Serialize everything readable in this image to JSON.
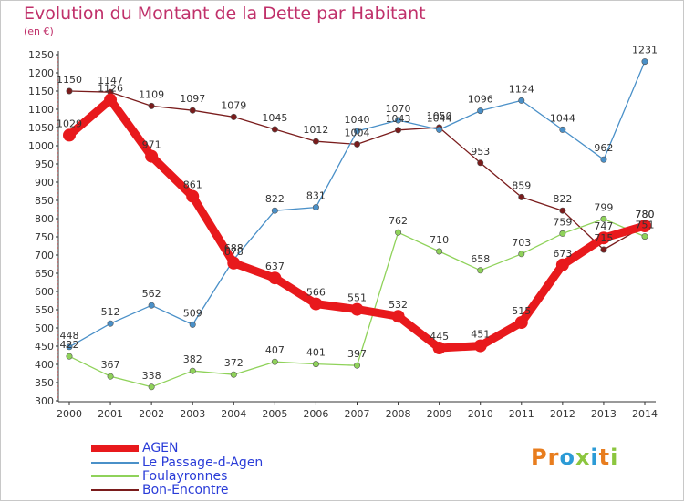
{
  "title": "Evolution du Montant de la Dette par Habitant",
  "unit": "(en €)",
  "logo": {
    "p": "Pr",
    "o": "o",
    "x": "x",
    "i": "i",
    "t": "t",
    "i2": "i"
  },
  "chart_data": {
    "type": "line",
    "title": "Evolution du Montant de la Dette par Habitant",
    "subtitle": "(en €)",
    "x": [
      "2000",
      "2001",
      "2002",
      "2003",
      "2004",
      "2005",
      "2006",
      "2007",
      "2008",
      "2009",
      "2010",
      "2011",
      "2012",
      "2013",
      "2014"
    ],
    "ylim": [
      300,
      1250
    ],
    "yticks": [
      300,
      350,
      400,
      450,
      500,
      550,
      600,
      650,
      700,
      750,
      800,
      850,
      900,
      950,
      1000,
      1050,
      1100,
      1150,
      1200,
      1250
    ],
    "grid": false,
    "legend_position": "bottom-left",
    "series": [
      {
        "name": "AGEN",
        "color": "#e8191c",
        "values": [
          1029,
          1126,
          971,
          861,
          678,
          637,
          566,
          551,
          532,
          445,
          451,
          515,
          673,
          747,
          780
        ],
        "labels": [
          "1029",
          "1126",
          "971",
          "861",
          "678",
          "637",
          "566",
          "551",
          "532",
          "445",
          "451",
          "515",
          "673",
          "747",
          "780"
        ]
      },
      {
        "name": "Le Passage-d-Agen",
        "color": "#4a90c8",
        "values": [
          448,
          512,
          562,
          509,
          688,
          822,
          831,
          1040,
          1070,
          1044,
          1096,
          1124,
          1044,
          962,
          1231
        ],
        "labels": [
          "448",
          "512",
          "562",
          "509",
          "688",
          "822",
          "831",
          "1040",
          "1070",
          "1044",
          "1096",
          "1124",
          "1044",
          "962",
          "1231"
        ]
      },
      {
        "name": "Foulayronnes",
        "color": "#8fd25a",
        "values": [
          422,
          367,
          338,
          382,
          372,
          407,
          401,
          397,
          762,
          710,
          658,
          703,
          759,
          799,
          751
        ],
        "labels": [
          "422",
          "367",
          "338",
          "382",
          "372",
          "407",
          "401",
          "397",
          "762",
          "710",
          "658",
          "703",
          "759",
          "799",
          "751"
        ]
      },
      {
        "name": "Bon-Encontre",
        "color": "#7a1c1c",
        "values": [
          1150,
          1147,
          1109,
          1097,
          1079,
          1045,
          1012,
          1004,
          1043,
          1050,
          953,
          859,
          822,
          715,
          780
        ],
        "labels": [
          "1150",
          "1147",
          "1109",
          "1097",
          "1079",
          "1045",
          "1012",
          "1004",
          "1043",
          "1050",
          "953",
          "859",
          "822",
          "715",
          "780"
        ]
      }
    ]
  }
}
